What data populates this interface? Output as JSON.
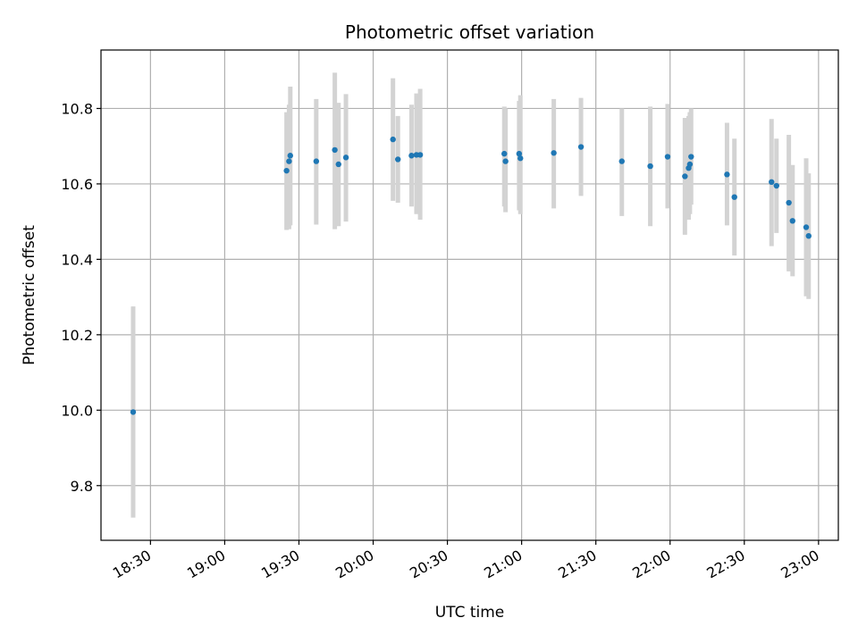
{
  "chart_data": {
    "type": "scatter",
    "title": "Photometric offset variation",
    "xlabel": "UTC time",
    "ylabel": "Photometric offset",
    "grid": true,
    "xlim": [
      "18:10",
      "23:08"
    ],
    "ylim": [
      9.655,
      10.955
    ],
    "x_ticks": [
      "18:30",
      "19:00",
      "19:30",
      "20:00",
      "20:30",
      "21:00",
      "21:30",
      "22:00",
      "22:30",
      "23:00"
    ],
    "y_ticks": [
      9.8,
      10.0,
      10.2,
      10.4,
      10.6,
      10.8
    ],
    "y_tick_labels": [
      "9.8",
      "10.0",
      "10.2",
      "10.4",
      "10.6",
      "10.8"
    ],
    "marker_color": "#1f77b4",
    "errorbar_color": "#d3d3d3",
    "series": [
      {
        "points": [
          {
            "x": "18:23",
            "y": 9.995,
            "ylow": 9.715,
            "yhigh": 10.275
          },
          {
            "x": "19:25",
            "y": 10.635,
            "ylow": 10.478,
            "yhigh": 10.79
          },
          {
            "x": "19:26",
            "y": 10.66,
            "ylow": 10.48,
            "yhigh": 10.81
          },
          {
            "x": "19:26.5",
            "y": 10.675,
            "ylow": 10.49,
            "yhigh": 10.858
          },
          {
            "x": "19:37",
            "y": 10.66,
            "ylow": 10.492,
            "yhigh": 10.825
          },
          {
            "x": "19:44.5",
            "y": 10.69,
            "ylow": 10.48,
            "yhigh": 10.895
          },
          {
            "x": "19:46",
            "y": 10.652,
            "ylow": 10.488,
            "yhigh": 10.815
          },
          {
            "x": "19:49",
            "y": 10.67,
            "ylow": 10.5,
            "yhigh": 10.838
          },
          {
            "x": "20:08",
            "y": 10.718,
            "ylow": 10.555,
            "yhigh": 10.88
          },
          {
            "x": "20:10",
            "y": 10.665,
            "ylow": 10.55,
            "yhigh": 10.78
          },
          {
            "x": "20:15.5",
            "y": 10.675,
            "ylow": 10.54,
            "yhigh": 10.81
          },
          {
            "x": "20:17.5",
            "y": 10.677,
            "ylow": 10.52,
            "yhigh": 10.84
          },
          {
            "x": "20:19",
            "y": 10.677,
            "ylow": 10.505,
            "yhigh": 10.852
          },
          {
            "x": "20:53",
            "y": 10.68,
            "ylow": 10.54,
            "yhigh": 10.805
          },
          {
            "x": "20:53.5",
            "y": 10.66,
            "ylow": 10.525,
            "yhigh": 10.8
          },
          {
            "x": "20:59",
            "y": 10.68,
            "ylow": 10.53,
            "yhigh": 10.82
          },
          {
            "x": "20:59.5",
            "y": 10.668,
            "ylow": 10.52,
            "yhigh": 10.835
          },
          {
            "x": "21:13",
            "y": 10.682,
            "ylow": 10.535,
            "yhigh": 10.825
          },
          {
            "x": "21:24",
            "y": 10.698,
            "ylow": 10.568,
            "yhigh": 10.828
          },
          {
            "x": "21:40.5",
            "y": 10.66,
            "ylow": 10.515,
            "yhigh": 10.8
          },
          {
            "x": "21:52",
            "y": 10.647,
            "ylow": 10.488,
            "yhigh": 10.805
          },
          {
            "x": "21:59",
            "y": 10.672,
            "ylow": 10.535,
            "yhigh": 10.812
          },
          {
            "x": "22:06",
            "y": 10.62,
            "ylow": 10.465,
            "yhigh": 10.775
          },
          {
            "x": "22:07.5",
            "y": 10.642,
            "ylow": 10.505,
            "yhigh": 10.78
          },
          {
            "x": "22:08",
            "y": 10.652,
            "ylow": 10.52,
            "yhigh": 10.79
          },
          {
            "x": "22:08.5",
            "y": 10.672,
            "ylow": 10.545,
            "yhigh": 10.8
          },
          {
            "x": "22:23",
            "y": 10.625,
            "ylow": 10.49,
            "yhigh": 10.762
          },
          {
            "x": "22:26",
            "y": 10.565,
            "ylow": 10.41,
            "yhigh": 10.72
          },
          {
            "x": "22:41",
            "y": 10.605,
            "ylow": 10.435,
            "yhigh": 10.772
          },
          {
            "x": "22:43",
            "y": 10.595,
            "ylow": 10.47,
            "yhigh": 10.72
          },
          {
            "x": "22:48",
            "y": 10.55,
            "ylow": 10.368,
            "yhigh": 10.73
          },
          {
            "x": "22:49.5",
            "y": 10.502,
            "ylow": 10.355,
            "yhigh": 10.65
          },
          {
            "x": "22:55",
            "y": 10.485,
            "ylow": 10.302,
            "yhigh": 10.668
          },
          {
            "x": "22:56",
            "y": 10.462,
            "ylow": 10.295,
            "yhigh": 10.628
          }
        ]
      }
    ]
  }
}
